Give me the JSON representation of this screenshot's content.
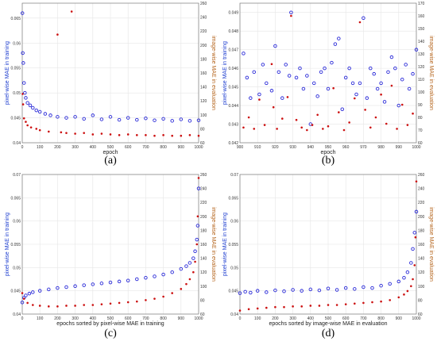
{
  "colors": {
    "left_axis": "#1f3fd0",
    "right_axis": "#b5651d",
    "blue": "#2a2ad8",
    "red": "#cc1111",
    "grid": "#e6e6e6",
    "frame": "#7a7a7a"
  },
  "chart_data": [
    {
      "caption": "(a)",
      "type": "scatter",
      "xlabel": "epoch",
      "ylabel_left": "pixel-wise MAE in training",
      "ylabel_right": "image-wise MAE in evaluation",
      "xlim": [
        0,
        1000
      ],
      "ylim_left": [
        0.04,
        0.068
      ],
      "ylim_right": [
        60,
        260
      ],
      "xticks": [
        "0",
        "100",
        "200",
        "300",
        "400",
        "500",
        "600",
        "700",
        "800",
        "900",
        "1000"
      ],
      "yticks_left": [
        "0.04",
        "0.045",
        "0.05",
        "0.055",
        "0.06",
        "0.065"
      ],
      "yticks_right": [
        "60",
        "80",
        "100",
        "120",
        "140",
        "160",
        "180",
        "200",
        "220",
        "240",
        "260"
      ],
      "grid": true,
      "series": [
        {
          "axis": "left",
          "color": "blue",
          "marker": "circle",
          "x": [
            1,
            3,
            6,
            10,
            15,
            20,
            30,
            45,
            60,
            80,
            100,
            130,
            160,
            200,
            250,
            300,
            350,
            400,
            450,
            500,
            550,
            600,
            650,
            700,
            750,
            800,
            850,
            900,
            950,
            1000
          ],
          "y": [
            0.066,
            0.058,
            0.056,
            0.052,
            0.05,
            0.049,
            0.048,
            0.0475,
            0.047,
            0.0465,
            0.0462,
            0.0458,
            0.0455,
            0.0452,
            0.045,
            0.0452,
            0.0448,
            0.0455,
            0.0447,
            0.0452,
            0.0446,
            0.045,
            0.0446,
            0.0449,
            0.0445,
            0.0448,
            0.0444,
            0.0447,
            0.0444,
            0.0445
          ]
        },
        {
          "axis": "right",
          "color": "red",
          "marker": "dot",
          "x": [
            2,
            5,
            10,
            20,
            30,
            50,
            80,
            100,
            150,
            200,
            220,
            250,
            280,
            300,
            350,
            400,
            450,
            500,
            550,
            600,
            650,
            700,
            750,
            800,
            850,
            900,
            950,
            1000
          ],
          "y": [
            130,
            115,
            95,
            90,
            85,
            82,
            80,
            78,
            76,
            215,
            75,
            74,
            248,
            73,
            74,
            72,
            73,
            72,
            71,
            72,
            71,
            71,
            70,
            71,
            70,
            70,
            71,
            70
          ]
        }
      ]
    },
    {
      "caption": "(b)",
      "type": "scatter",
      "xlabel": "epoch",
      "ylabel_left": "pixel-wise MAE in training",
      "ylabel_right": "image-wise MAE in evaluation",
      "xlim": [
        900,
        1000
      ],
      "ylim_left": [
        0.042,
        0.0495
      ],
      "ylim_right": [
        60,
        170
      ],
      "xticks": [
        "900",
        "910",
        "920",
        "930",
        "940",
        "950",
        "960",
        "970",
        "980",
        "990",
        "1000"
      ],
      "yticks_left": [
        "0.042",
        "0.043",
        "0.044",
        "0.045",
        "0.046",
        "0.047",
        "0.048",
        "0.049"
      ],
      "yticks_right": [
        "60",
        "70",
        "80",
        "90",
        "100",
        "110",
        "120",
        "130",
        "140",
        "150",
        "160",
        "170"
      ],
      "grid": true,
      "series": [
        {
          "axis": "left",
          "color": "blue",
          "marker": "circle",
          "x": [
            902,
            904,
            906,
            908,
            911,
            913,
            915,
            918,
            920,
            922,
            924,
            926,
            928,
            929,
            932,
            934,
            936,
            938,
            940,
            942,
            944,
            946,
            948,
            950,
            952,
            954,
            956,
            958,
            960,
            962,
            964,
            966,
            968,
            970,
            972,
            974,
            976,
            978,
            980,
            982,
            984,
            986,
            988,
            990,
            992,
            994,
            996,
            998,
            1000
          ],
          "y": [
            0.0468,
            0.0455,
            0.0444,
            0.0458,
            0.0446,
            0.0462,
            0.0452,
            0.0448,
            0.0472,
            0.0458,
            0.0444,
            0.0462,
            0.0456,
            0.049,
            0.0455,
            0.046,
            0.0449,
            0.0456,
            0.043,
            0.0452,
            0.0445,
            0.0458,
            0.046,
            0.0449,
            0.0463,
            0.0473,
            0.0476,
            0.0438,
            0.0455,
            0.046,
            0.0452,
            0.0446,
            0.0452,
            0.0487,
            0.0444,
            0.046,
            0.0457,
            0.0449,
            0.0452,
            0.0442,
            0.0458,
            0.0466,
            0.046,
            0.044,
            0.0454,
            0.0462,
            0.0449,
            0.0457,
            0.047
          ]
        },
        {
          "axis": "right",
          "color": "red",
          "marker": "dot",
          "x": [
            902,
            905,
            908,
            911,
            914,
            918,
            919,
            921,
            924,
            927,
            929,
            932,
            935,
            938,
            941,
            944,
            947,
            950,
            953,
            956,
            959,
            962,
            965,
            968,
            971,
            974,
            977,
            980,
            983,
            986,
            989,
            992,
            995,
            998
          ],
          "y": [
            72,
            80,
            71,
            94,
            74,
            122,
            88,
            71,
            79,
            96,
            160,
            78,
            72,
            70,
            74,
            82,
            71,
            73,
            103,
            84,
            70,
            76,
            95,
            155,
            86,
            72,
            80,
            98,
            75,
            105,
            71,
            90,
            74,
            83
          ]
        }
      ]
    },
    {
      "caption": "(c)",
      "type": "scatter",
      "xlabel": "epochs sorted by pixel-wise MAE in training",
      "ylabel_left": "pixel-wise MAE in training",
      "ylabel_right": "image-wise MAE in evaluation",
      "xlim": [
        0,
        1000
      ],
      "ylim_left": [
        0.04,
        0.07
      ],
      "ylim_right": [
        60,
        260
      ],
      "xticks": [
        "0",
        "100",
        "200",
        "300",
        "400",
        "500",
        "600",
        "700",
        "800",
        "900",
        "1000"
      ],
      "yticks_left": [
        "0.04",
        "0.045",
        "0.05",
        "0.055",
        "0.06",
        "0.065",
        "0.07"
      ],
      "yticks_right": [
        "60",
        "80",
        "100",
        "120",
        "140",
        "160",
        "180",
        "200",
        "220",
        "240",
        "260"
      ],
      "grid": true,
      "series": [
        {
          "axis": "left",
          "color": "blue",
          "marker": "circle",
          "x": [
            0,
            10,
            20,
            40,
            60,
            100,
            150,
            200,
            250,
            300,
            350,
            400,
            450,
            500,
            550,
            600,
            650,
            700,
            750,
            800,
            850,
            900,
            930,
            950,
            970,
            980,
            990,
            995,
            1000
          ],
          "y": [
            0.0425,
            0.0435,
            0.044,
            0.0444,
            0.0447,
            0.045,
            0.0453,
            0.0456,
            0.0458,
            0.046,
            0.0462,
            0.0464,
            0.0466,
            0.0468,
            0.047,
            0.0472,
            0.0475,
            0.0478,
            0.0481,
            0.0485,
            0.049,
            0.0497,
            0.0503,
            0.051,
            0.052,
            0.0535,
            0.056,
            0.059,
            0.067
          ]
        },
        {
          "axis": "right",
          "color": "red",
          "marker": "dot",
          "x": [
            0,
            10,
            30,
            60,
            100,
            150,
            200,
            250,
            300,
            350,
            400,
            450,
            500,
            550,
            600,
            650,
            700,
            750,
            800,
            850,
            900,
            930,
            950,
            970,
            980,
            990,
            995,
            1000
          ],
          "y": [
            90,
            82,
            76,
            73,
            72,
            71,
            71,
            72,
            72,
            73,
            73,
            74,
            75,
            76,
            77,
            78,
            80,
            82,
            85,
            90,
            96,
            103,
            110,
            120,
            135,
            160,
            200,
            255
          ]
        }
      ]
    },
    {
      "caption": "(d)",
      "type": "scatter",
      "xlabel": "epochs sorted by image-wise MAE in evaluation",
      "ylabel_left": "pixel-wise MAE in training",
      "ylabel_right": "image-wise MAE in evaluation",
      "xlim": [
        0,
        1000
      ],
      "ylim_left": [
        0.04,
        0.07
      ],
      "ylim_right": [
        60,
        260
      ],
      "xticks": [
        "0",
        "100",
        "200",
        "300",
        "400",
        "500",
        "600",
        "700",
        "800",
        "900",
        "1000"
      ],
      "yticks_left": [
        "0.04",
        "0.045",
        "0.05",
        "0.055",
        "0.06",
        "0.065",
        "0.07"
      ],
      "yticks_right": [
        "60",
        "80",
        "100",
        "120",
        "140",
        "160",
        "180",
        "200",
        "220",
        "240",
        "260"
      ],
      "grid": true,
      "series": [
        {
          "axis": "left",
          "color": "blue",
          "marker": "circle",
          "x": [
            0,
            30,
            60,
            100,
            150,
            200,
            250,
            300,
            350,
            400,
            450,
            500,
            550,
            600,
            650,
            700,
            750,
            800,
            850,
            900,
            930,
            950,
            970,
            980,
            990,
            1000
          ],
          "y": [
            0.0445,
            0.0448,
            0.0446,
            0.045,
            0.0447,
            0.0451,
            0.0449,
            0.0452,
            0.045,
            0.0453,
            0.0451,
            0.0455,
            0.0452,
            0.0456,
            0.0454,
            0.0458,
            0.0456,
            0.0461,
            0.0465,
            0.047,
            0.0478,
            0.049,
            0.051,
            0.054,
            0.0575,
            0.062
          ]
        },
        {
          "axis": "right",
          "color": "red",
          "marker": "dot",
          "x": [
            0,
            50,
            100,
            150,
            200,
            250,
            300,
            350,
            400,
            450,
            500,
            550,
            600,
            650,
            700,
            750,
            800,
            850,
            900,
            930,
            950,
            970,
            980,
            990,
            995,
            1000
          ],
          "y": [
            65,
            67,
            68,
            69,
            70,
            70,
            71,
            71,
            72,
            72,
            73,
            73,
            74,
            75,
            76,
            77,
            78,
            80,
            84,
            88,
            93,
            100,
            110,
            130,
            170,
            250
          ]
        }
      ]
    }
  ]
}
